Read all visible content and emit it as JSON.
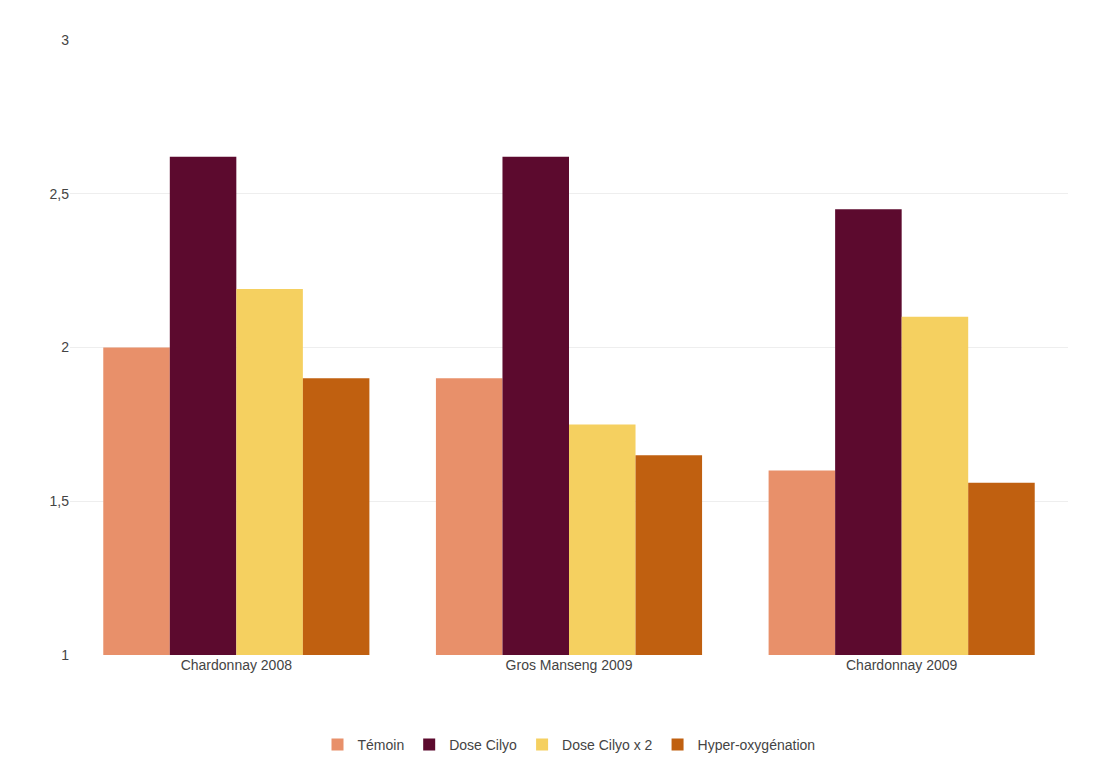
{
  "chart_data": {
    "type": "bar",
    "categories": [
      "Chardonnay 2008",
      "Gros Manseng 2009",
      "Chardonnay 2009"
    ],
    "series": [
      {
        "name": "Témoin",
        "color": "#E8906A",
        "values": [
          2.0,
          1.9,
          1.6
        ]
      },
      {
        "name": "Dose Cilyo",
        "color": "#5C0A2E",
        "values": [
          2.62,
          2.62,
          2.45
        ]
      },
      {
        "name": "Dose Cilyo x 2",
        "color": "#F5D060",
        "values": [
          2.19,
          1.75,
          2.1
        ]
      },
      {
        "name": "Hyper-oxygénation",
        "color": "#C06010",
        "values": [
          1.9,
          1.65,
          1.56
        ]
      }
    ],
    "ylim": [
      1.0,
      3.0
    ],
    "yticks": [
      1,
      {
        "value": 1.5,
        "label": "1,5"
      },
      2,
      {
        "value": 2.5,
        "label": "2,5"
      },
      3
    ],
    "grid": true,
    "legend": "bottom"
  }
}
